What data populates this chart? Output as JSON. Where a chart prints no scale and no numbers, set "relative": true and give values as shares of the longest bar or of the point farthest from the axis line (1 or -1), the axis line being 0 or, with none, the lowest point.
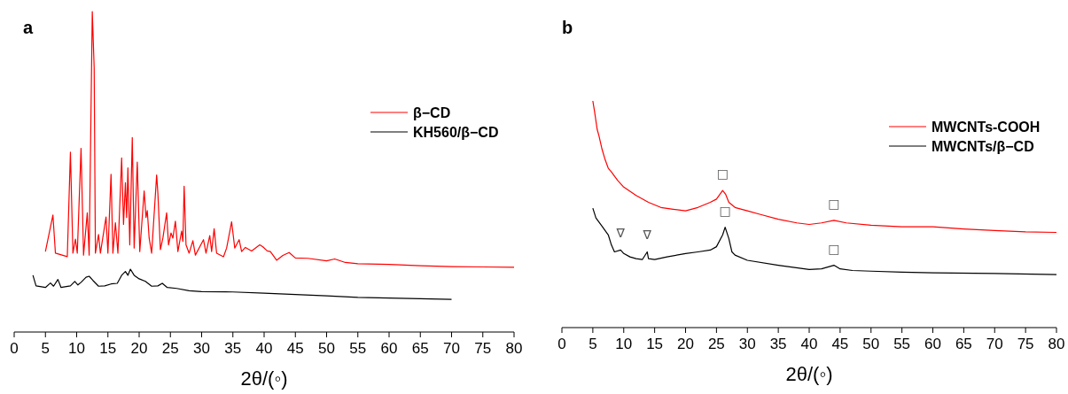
{
  "chart_data": [
    {
      "type": "line",
      "title": "a",
      "xlabel": "2θ/(◦)",
      "relative": true,
      "xlim": [
        0,
        80
      ],
      "xticks": [
        0,
        5,
        10,
        15,
        20,
        25,
        30,
        35,
        40,
        45,
        50,
        55,
        60,
        65,
        70,
        75,
        80
      ],
      "tick_labels": "x",
      "legend": "top right",
      "grid": false,
      "line_style": "solid",
      "marker": "none",
      "series": [
        {
          "name": "β−CD",
          "color": "#ff0000",
          "x": [
            5,
            6.2,
            6.6,
            8.5,
            9,
            9.4,
            9.8,
            10.1,
            10.7,
            11.1,
            11.7,
            12,
            12.5,
            12.8,
            13,
            13.5,
            13.8,
            14.7,
            15,
            15.5,
            15.8,
            16.2,
            16.6,
            17.2,
            17.5,
            17.8,
            18,
            18.2,
            18.5,
            18.9,
            19.2,
            19.7,
            20.1,
            20.8,
            21.1,
            21.3,
            21.6,
            22,
            22.8,
            23,
            23.4,
            23.8,
            24.4,
            24.7,
            25.1,
            25.4,
            25.8,
            26.2,
            26.8,
            27,
            27.2,
            27.5,
            28,
            28.6,
            29,
            30.3,
            30.7,
            31.3,
            31.6,
            32,
            32.4,
            33.5,
            34,
            34.8,
            35.3,
            36,
            36.4,
            37,
            38,
            39.3,
            39.8,
            40.5,
            41,
            42,
            43,
            44,
            45,
            47,
            50,
            51.3,
            53,
            55,
            60,
            65,
            70,
            75,
            80
          ],
          "values": [
            0.251,
            0.365,
            0.246,
            0.235,
            0.561,
            0.246,
            0.29,
            0.246,
            0.573,
            0.24,
            0.372,
            0.24,
            1.0,
            0.825,
            0.246,
            0.304,
            0.246,
            0.359,
            0.246,
            0.492,
            0.246,
            0.341,
            0.246,
            0.543,
            0.336,
            0.466,
            0.357,
            0.512,
            0.272,
            0.607,
            0.262,
            0.53,
            0.251,
            0.44,
            0.357,
            0.379,
            0.293,
            0.246,
            0.49,
            0.432,
            0.257,
            0.293,
            0.372,
            0.272,
            0.309,
            0.293,
            0.346,
            0.251,
            0.315,
            0.283,
            0.455,
            0.272,
            0.246,
            0.285,
            0.24,
            0.288,
            0.246,
            0.301,
            0.251,
            0.322,
            0.246,
            0.235,
            0.262,
            0.344,
            0.262,
            0.288,
            0.251,
            0.264,
            0.253,
            0.272,
            0.266,
            0.253,
            0.251,
            0.224,
            0.239,
            0.248,
            0.231,
            0.23,
            0.222,
            0.228,
            0.217,
            0.213,
            0.211,
            0.207,
            0.204,
            0.203,
            0.202
          ]
        },
        {
          "name": "KH560/β−CD",
          "color": "#000000",
          "x": [
            3,
            3.5,
            5,
            5.8,
            6.3,
            7,
            7.5,
            9,
            9.7,
            10.2,
            10.7,
            11.5,
            12,
            12.6,
            13.5,
            14.5,
            15.5,
            16.5,
            17.2,
            17.8,
            18.2,
            18.6,
            19.2,
            20,
            21,
            22,
            23,
            23.7,
            24.5,
            26,
            28,
            30,
            35,
            40,
            45,
            50,
            55,
            60,
            65,
            70
          ],
          "values": [
            0.177,
            0.144,
            0.139,
            0.153,
            0.143,
            0.164,
            0.139,
            0.144,
            0.158,
            0.147,
            0.155,
            0.171,
            0.174,
            0.161,
            0.143,
            0.144,
            0.15,
            0.152,
            0.177,
            0.189,
            0.177,
            0.196,
            0.177,
            0.166,
            0.158,
            0.143,
            0.144,
            0.152,
            0.139,
            0.136,
            0.129,
            0.126,
            0.125,
            0.121,
            0.117,
            0.113,
            0.108,
            0.106,
            0.104,
            0.102
          ]
        }
      ]
    },
    {
      "type": "line",
      "title": "b",
      "xlabel": "2θ/(◦)",
      "relative": true,
      "xlim": [
        0,
        80
      ],
      "xticks": [
        0,
        5,
        10,
        15,
        20,
        25,
        30,
        35,
        40,
        45,
        50,
        55,
        60,
        65,
        70,
        75,
        80
      ],
      "tick_labels": "x",
      "legend": "top right",
      "grid": false,
      "line_style": "solid",
      "marker": "none",
      "annotations": [
        {
          "text": "□",
          "x": 26,
          "y": 0.605
        },
        {
          "text": "□",
          "x": 26.4,
          "y": 0.443
        },
        {
          "text": "□",
          "x": 44,
          "y": 0.473
        },
        {
          "text": "□",
          "x": 44,
          "y": 0.275
        },
        {
          "text": "∇",
          "x": 9.5,
          "y": 0.342
        },
        {
          "text": "∇",
          "x": 13.8,
          "y": 0.334
        }
      ],
      "series": [
        {
          "name": "MWCNTs-COOH",
          "color": "#ff0000",
          "x": [
            5,
            5.3,
            5.7,
            6,
            6.5,
            7,
            7.5,
            8,
            9,
            10,
            12,
            14,
            16,
            18,
            20,
            22,
            24,
            25,
            26,
            26.5,
            27,
            28,
            30,
            32,
            35,
            38,
            40,
            42,
            44,
            46,
            50,
            55,
            60,
            65,
            70,
            75,
            80
          ],
          "values": [
            1.0,
            0.95,
            0.875,
            0.845,
            0.786,
            0.74,
            0.703,
            0.687,
            0.65,
            0.62,
            0.583,
            0.553,
            0.53,
            0.522,
            0.515,
            0.53,
            0.553,
            0.567,
            0.605,
            0.587,
            0.553,
            0.53,
            0.515,
            0.5,
            0.478,
            0.462,
            0.455,
            0.462,
            0.473,
            0.462,
            0.452,
            0.445,
            0.445,
            0.435,
            0.428,
            0.422,
            0.42
          ]
        },
        {
          "name": "MWCNTs/β−CD",
          "color": "#000000",
          "x": [
            5,
            5.5,
            6.5,
            7.5,
            8,
            8.5,
            9.5,
            10,
            11,
            12,
            13,
            13.8,
            14,
            15,
            17,
            20,
            22,
            24,
            25,
            26,
            26.4,
            27,
            27.5,
            28,
            30,
            35,
            40,
            42,
            44,
            45,
            47,
            50,
            55,
            60,
            70,
            80
          ],
          "values": [
            0.527,
            0.484,
            0.447,
            0.409,
            0.365,
            0.334,
            0.342,
            0.327,
            0.312,
            0.304,
            0.3,
            0.334,
            0.304,
            0.3,
            0.312,
            0.327,
            0.334,
            0.342,
            0.357,
            0.409,
            0.443,
            0.393,
            0.334,
            0.32,
            0.297,
            0.275,
            0.256,
            0.259,
            0.275,
            0.259,
            0.252,
            0.249,
            0.245,
            0.242,
            0.239,
            0.234
          ]
        }
      ]
    }
  ]
}
